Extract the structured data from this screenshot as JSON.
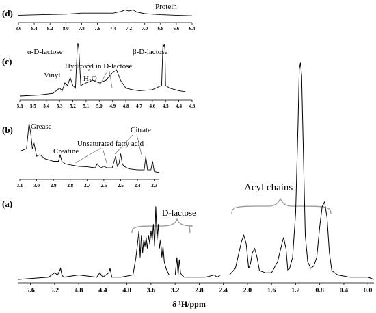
{
  "chart_data": [
    {
      "id": "d",
      "type": "line",
      "panel_label": "(d)",
      "annotation": "Protein",
      "xlim": [
        8.6,
        6.4
      ],
      "xticks": [
        "8.6",
        "8.4",
        "8.2",
        "8.0",
        "7.8",
        "7.6",
        "7.4",
        "7.2",
        "7.0",
        "6.8",
        "6.6",
        "6.4"
      ],
      "series": [
        {
          "x": [
            8.6,
            8.3,
            8.0,
            7.8,
            7.6,
            7.4,
            7.3,
            7.25,
            7.2,
            7.15,
            7.1,
            7.0,
            6.8,
            6.6,
            6.4
          ],
          "y": [
            0.35,
            0.4,
            0.45,
            0.55,
            0.55,
            0.55,
            0.7,
            0.85,
            0.75,
            0.85,
            0.65,
            0.5,
            0.4,
            0.35,
            0.3
          ]
        }
      ]
    },
    {
      "id": "c",
      "type": "line",
      "panel_label": "(c)",
      "annotations": [
        "α-D-lactose",
        "β-D-lactose",
        "Vinyl",
        "Hydroxyl in D-lactose",
        "H₂O"
      ],
      "xlim": [
        5.6,
        4.3
      ],
      "xticks": [
        "5.6",
        "5.5",
        "5.4",
        "5.3",
        "5.2",
        "5.1",
        "5.0",
        "4.9",
        "4.8",
        "4.7",
        "4.6",
        "4.5",
        "4.4",
        "4.3"
      ],
      "series": [
        {
          "x": [
            5.6,
            5.45,
            5.35,
            5.3,
            5.28,
            5.26,
            5.24,
            5.22,
            5.2,
            5.18,
            5.165,
            5.16,
            5.155,
            5.14,
            5.1,
            5.05,
            5.0,
            4.95,
            4.9,
            4.87,
            4.84,
            4.8,
            4.75,
            4.7,
            4.6,
            4.53,
            4.52,
            4.515,
            4.51,
            4.505,
            4.5,
            4.47,
            4.4,
            4.35
          ],
          "y": [
            0.0,
            0.02,
            0.05,
            0.15,
            0.1,
            0.25,
            0.2,
            0.35,
            0.2,
            0.15,
            1.0,
            1.0,
            0.9,
            0.2,
            0.25,
            0.3,
            0.25,
            0.3,
            0.45,
            0.5,
            0.3,
            0.15,
            0.12,
            0.1,
            0.12,
            0.2,
            1.0,
            0.95,
            1.0,
            0.9,
            0.2,
            0.15,
            0.1,
            0.08
          ]
        }
      ]
    },
    {
      "id": "b",
      "type": "line",
      "panel_label": "(b)",
      "annotations": [
        "Grease",
        "Creatine",
        "Unsaturated fatty acid",
        "Citrate"
      ],
      "xlim": [
        3.1,
        2.27
      ],
      "xticks": [
        "3.1",
        "3.0",
        "2.9",
        "2.8",
        "2.7",
        "2.6",
        "2.5",
        "2.4",
        "2.3"
      ],
      "series": [
        {
          "x": [
            3.1,
            3.06,
            3.045,
            3.035,
            3.025,
            3.015,
            3.0,
            2.98,
            2.95,
            2.9,
            2.87,
            2.86,
            2.85,
            2.83,
            2.8,
            2.75,
            2.7,
            2.65,
            2.64,
            2.62,
            2.6,
            2.58,
            2.55,
            2.53,
            2.52,
            2.51,
            2.5,
            2.49,
            2.48,
            2.45,
            2.4,
            2.36,
            2.35,
            2.34,
            2.32,
            2.31,
            2.3,
            2.29,
            2.27
          ],
          "y": [
            0.45,
            0.5,
            1.0,
            0.8,
            0.5,
            0.6,
            0.35,
            0.38,
            0.3,
            0.25,
            0.25,
            0.38,
            0.25,
            0.2,
            0.18,
            0.15,
            0.14,
            0.12,
            0.2,
            0.12,
            0.15,
            0.12,
            0.12,
            0.35,
            0.15,
            0.2,
            0.4,
            0.2,
            0.15,
            0.1,
            0.08,
            0.08,
            0.35,
            0.08,
            0.08,
            0.25,
            0.05,
            0.04,
            0.03
          ]
        }
      ]
    },
    {
      "id": "a",
      "type": "line",
      "panel_label": "(a)",
      "xlabel": "δ ¹H/ppm",
      "annotations": [
        "D-lactose",
        "Acyl chains"
      ],
      "xlim": [
        5.8,
        -0.1
      ],
      "xticks": [
        "5.6",
        "5.2",
        "4.8",
        "4.4",
        "4.0",
        "3.6",
        "3.2",
        "2.8",
        "2.4",
        "2.0",
        "1.6",
        "1.2",
        "0.8",
        "0.4",
        "0.0"
      ],
      "series": [
        {
          "x": [
            5.8,
            5.3,
            5.2,
            5.15,
            5.1,
            5.08,
            5.05,
            4.8,
            4.5,
            4.45,
            4.4,
            4.3,
            4.28,
            4.25,
            4.1,
            3.9,
            3.85,
            3.8,
            3.78,
            3.76,
            3.74,
            3.72,
            3.7,
            3.68,
            3.66,
            3.64,
            3.62,
            3.6,
            3.58,
            3.56,
            3.54,
            3.52,
            3.5,
            3.48,
            3.46,
            3.44,
            3.42,
            3.4,
            3.38,
            3.35,
            3.3,
            3.2,
            3.17,
            3.15,
            3.13,
            3.11,
            3.09,
            3.05,
            3.0,
            2.8,
            2.7,
            2.55,
            2.5,
            2.45,
            2.3,
            2.2,
            2.1,
            2.06,
            2.02,
            1.98,
            1.95,
            1.92,
            1.88,
            1.84,
            1.8,
            1.7,
            1.6,
            1.5,
            1.43,
            1.4,
            1.36,
            1.33,
            1.3,
            1.25,
            1.2,
            1.16,
            1.14,
            1.12,
            1.1,
            1.07,
            1.04,
            1.0,
            0.95,
            0.9,
            0.85,
            0.8,
            0.76,
            0.72,
            0.68,
            0.64,
            0.6,
            0.5,
            0.3,
            0.0,
            -0.1
          ],
          "y": [
            0.0,
            0.01,
            0.03,
            0.02,
            0.05,
            0.02,
            0.01,
            0.02,
            0.01,
            0.03,
            0.01,
            0.03,
            0.05,
            0.01,
            0.01,
            0.02,
            0.1,
            0.22,
            0.1,
            0.2,
            0.12,
            0.18,
            0.15,
            0.19,
            0.14,
            0.2,
            0.16,
            0.22,
            0.18,
            0.25,
            0.15,
            0.33,
            0.18,
            0.25,
            0.14,
            0.18,
            0.1,
            0.15,
            0.08,
            0.05,
            0.02,
            0.02,
            0.1,
            0.02,
            0.09,
            0.03,
            0.02,
            0.01,
            0.01,
            0.01,
            0.01,
            0.02,
            0.01,
            0.02,
            0.02,
            0.05,
            0.17,
            0.2,
            0.16,
            0.05,
            0.07,
            0.12,
            0.14,
            0.1,
            0.04,
            0.03,
            0.03,
            0.08,
            0.16,
            0.19,
            0.14,
            0.04,
            0.05,
            0.1,
            0.3,
            0.7,
            0.95,
            0.98,
            0.92,
            0.55,
            0.2,
            0.08,
            0.05,
            0.06,
            0.1,
            0.24,
            0.33,
            0.35,
            0.28,
            0.12,
            0.04,
            0.02,
            0.01,
            0.01,
            0.0
          ]
        }
      ]
    }
  ]
}
